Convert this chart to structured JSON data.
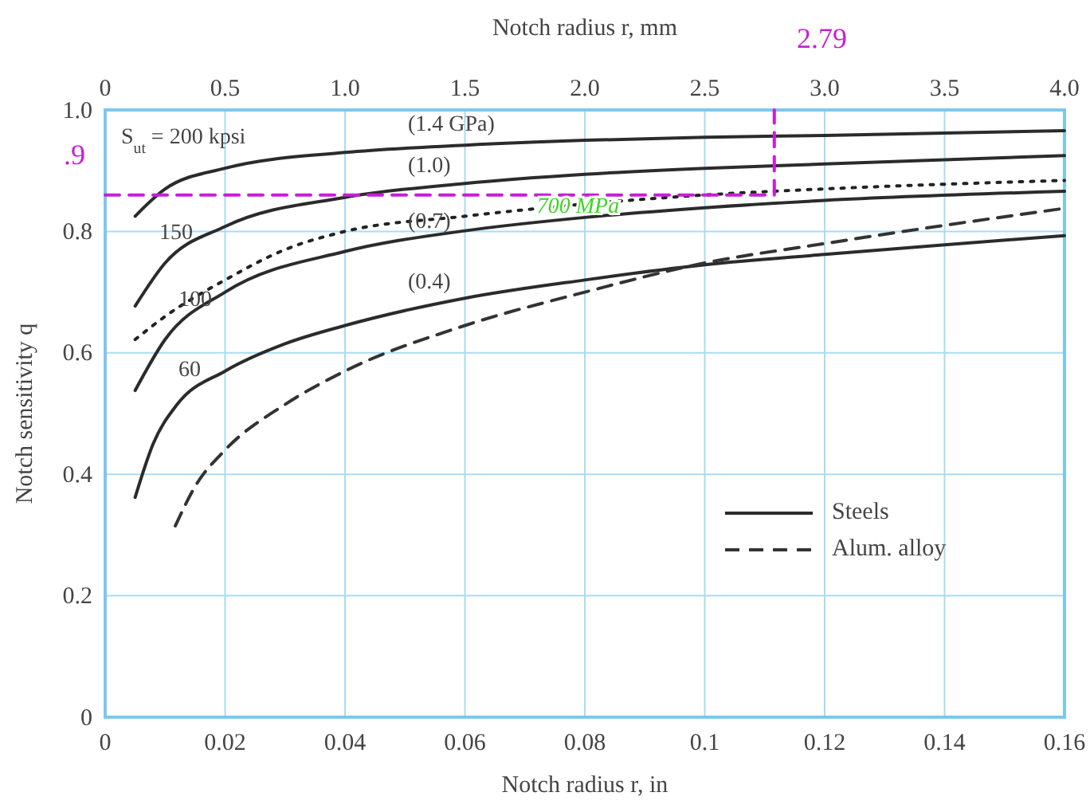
{
  "chart_data": {
    "type": "line",
    "xlabel": "Notch radius r, in",
    "ylabel": "Notch sensitivity q",
    "x2label": "Notch radius r, mm",
    "xlim": [
      0,
      0.16
    ],
    "xticks": [
      0,
      0.02,
      0.04,
      0.06,
      0.08,
      0.1,
      0.12,
      0.14,
      0.16
    ],
    "x2lim": [
      0,
      4
    ],
    "x2ticks": [
      0,
      0.5,
      {
        "value": 1,
        "label": "1.0"
      },
      1.5,
      {
        "value": 2,
        "label": "2.0"
      },
      2.5,
      {
        "value": 3,
        "label": "3.0"
      },
      3.5,
      {
        "value": 4,
        "label": "4.0"
      }
    ],
    "ylim": [
      0,
      1
    ],
    "yticks": [
      0,
      0.2,
      0.4,
      0.6,
      0.8,
      {
        "value": 1,
        "label": "1.0"
      }
    ],
    "grid": true,
    "legend": "bottom right",
    "series": [
      {
        "name": "Steels",
        "color": "#2b2b2b",
        "line_style": "solid",
        "x": [
          0.005,
          0.01,
          0.02,
          0.04,
          0.06,
          0.08,
          0.1,
          0.12,
          0.16
        ],
        "values": [
          0.825,
          0.87,
          0.904,
          0.93,
          0.942,
          0.95,
          0.955,
          0.958,
          0.966
        ]
      },
      {
        "color": "#2b2b2b",
        "line_style": "solid",
        "x": [
          0.005,
          0.01,
          0.02,
          0.04,
          0.06,
          0.08,
          0.1,
          0.12,
          0.16
        ],
        "values": [
          0.677,
          0.748,
          0.808,
          0.856,
          0.879,
          0.894,
          0.904,
          0.911,
          0.925
        ]
      },
      {
        "color": "#2b2b2b",
        "line_style": "solid",
        "x": [
          0.005,
          0.01,
          0.02,
          0.04,
          0.06,
          0.08,
          0.1,
          0.12,
          0.16
        ],
        "values": [
          0.538,
          0.622,
          0.7,
          0.767,
          0.801,
          0.823,
          0.839,
          0.851,
          0.866
        ]
      },
      {
        "color": "#2b2b2b",
        "line_style": "solid",
        "x": [
          0.005,
          0.008,
          0.012,
          0.02,
          0.03,
          0.04,
          0.06,
          0.08,
          0.1,
          0.12,
          0.14,
          0.16
        ],
        "values": [
          0.362,
          0.45,
          0.515,
          0.57,
          0.615,
          0.645,
          0.69,
          0.72,
          0.745,
          0.762,
          0.778,
          0.793
        ]
      },
      {
        "name": "Alum. alloy",
        "color": "#333333",
        "line_style": "dashed",
        "x": [
          0.0117,
          0.015,
          0.02,
          0.03,
          0.04,
          0.06,
          0.08,
          0.1,
          0.12,
          0.14,
          0.16
        ],
        "values": [
          0.315,
          0.38,
          0.44,
          0.515,
          0.57,
          0.645,
          0.7,
          0.748,
          0.78,
          0.81,
          0.838
        ]
      },
      {
        "color": "#222222",
        "line_style": "dotted",
        "x": [
          0.005,
          0.01,
          0.02,
          0.03,
          0.04,
          0.06,
          0.08,
          0.1,
          0.12,
          0.16
        ],
        "values": [
          0.622,
          0.66,
          0.72,
          0.77,
          0.8,
          0.825,
          0.845,
          0.86,
          0.87,
          0.884
        ]
      },
      {
        "color": "#c81ed6",
        "line_style": "dashed",
        "x": [
          0,
          0.1116,
          0.1116
        ],
        "values": [
          0.86,
          0.86,
          1
        ]
      }
    ],
    "annotations": [
      "S$_{ut}$ = 200 kpsi",
      "150",
      "100",
      "60",
      "(1.4 GPa)",
      "(1.0)",
      "(0.7)",
      "(0.4)",
      {
        "text": "700 MPa",
        "x": 0.072,
        "y": 0.838
      },
      ".9",
      "2.79"
    ]
  }
}
